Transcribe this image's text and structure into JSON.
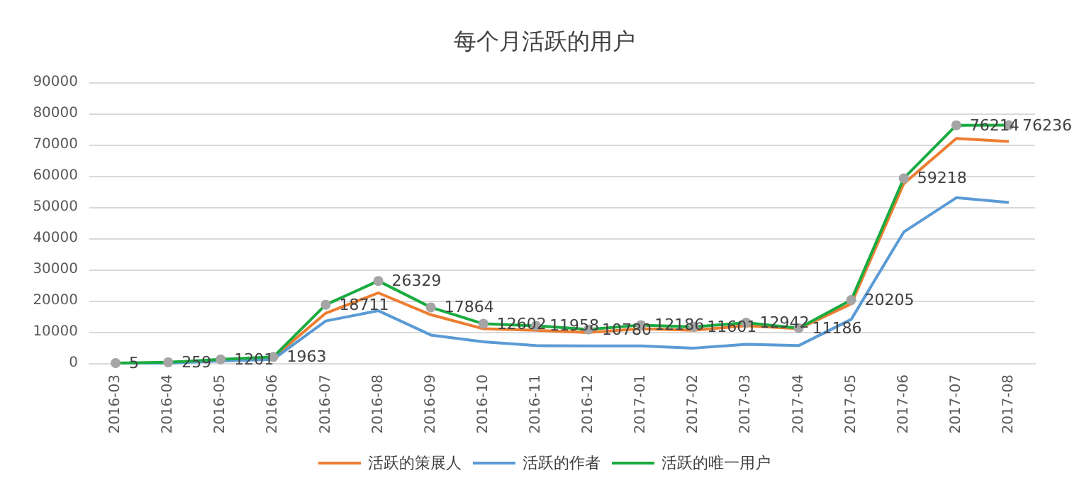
{
  "chart_data": {
    "type": "line",
    "title": "每个月活跃的用户",
    "categories": [
      "2016-03",
      "2016-04",
      "2016-05",
      "2016-06",
      "2016-07",
      "2016-08",
      "2016-09",
      "2016-10",
      "2016-11",
      "2016-12",
      "2017-01",
      "2017-02",
      "2017-03",
      "2017-04",
      "2017-05",
      "2017-06",
      "2017-07",
      "2017-08"
    ],
    "series": [
      {
        "name": "活跃的策展人",
        "color": "#ed7d31",
        "marker": "none",
        "values": [
          null,
          null,
          1000,
          1700,
          16000,
          22500,
          15500,
          11000,
          10500,
          9800,
          11000,
          10500,
          12000,
          11000,
          19000,
          57500,
          72000,
          71000
        ]
      },
      {
        "name": "活跃的作者",
        "color": "#5b9bd5",
        "marker": "none",
        "values": [
          0,
          0,
          700,
          1200,
          13500,
          16800,
          9000,
          6800,
          5600,
          5500,
          5500,
          4800,
          6000,
          5600,
          14000,
          42000,
          53000,
          51500
        ]
      },
      {
        "name": "活跃的唯一用户",
        "color": "#1aab40",
        "marker": "circle",
        "data_labels": true,
        "values": [
          5,
          259,
          1201,
          1963,
          18711,
          26329,
          17864,
          12602,
          11958,
          10780,
          12186,
          11601,
          12942,
          11186,
          20205,
          59218,
          76214,
          76236
        ]
      }
    ],
    "ylim": [
      0,
      90000
    ],
    "yticks": [
      0,
      10000,
      20000,
      30000,
      40000,
      50000,
      60000,
      70000,
      80000,
      90000
    ],
    "grid": "y",
    "legend": "bottom"
  }
}
